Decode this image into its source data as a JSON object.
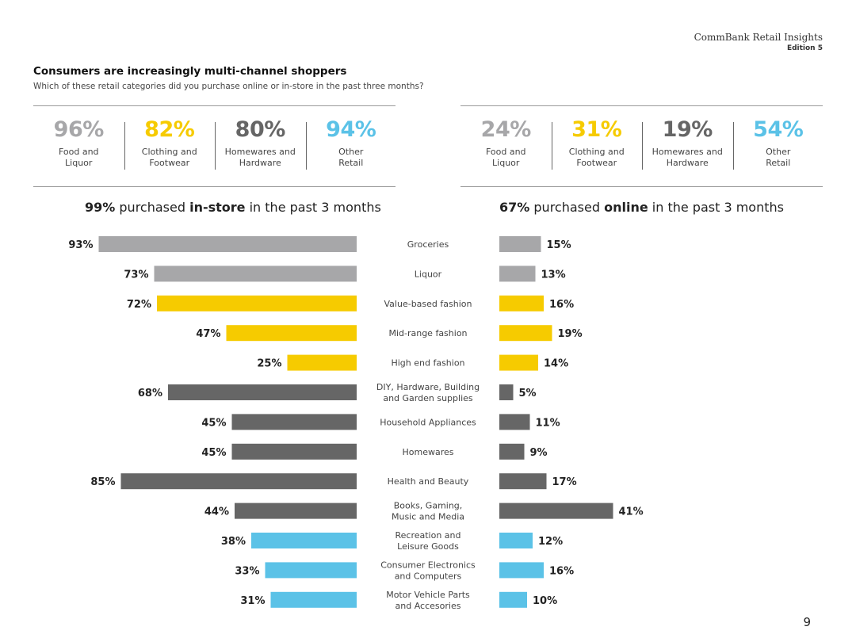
{
  "brand": {
    "name": "CommBank Retail Insights",
    "edition": "Edition 5"
  },
  "headline": "Consumers are increasingly multi-channel shoppers",
  "subhead": "Which of these retail categories did you purchase online or in-store in the past three months?",
  "colors": {
    "grey": "#a7a7a9",
    "yellow": "#f6cb00",
    "dark": "#666666",
    "blue": "#5bc2e7"
  },
  "instore_summary": [
    {
      "pct": "96%",
      "label": "Food and\nLiquor",
      "color": "#a7a7a9"
    },
    {
      "pct": "82%",
      "label": "Clothing and\nFootwear",
      "color": "#f6cb00"
    },
    {
      "pct": "80%",
      "label": "Homewares and\nHardware",
      "color": "#666666"
    },
    {
      "pct": "94%",
      "label": "Other\nRetail",
      "color": "#5bc2e7"
    }
  ],
  "online_summary": [
    {
      "pct": "24%",
      "label": "Food and\nLiquor",
      "color": "#a7a7a9"
    },
    {
      "pct": "31%",
      "label": "Clothing and\nFootwear",
      "color": "#f6cb00"
    },
    {
      "pct": "19%",
      "label": "Homewares and\nHardware",
      "color": "#666666"
    },
    {
      "pct": "54%",
      "label": "Other\nRetail",
      "color": "#5bc2e7"
    }
  ],
  "instore_title": {
    "pct": "99%",
    "pre": "purchased",
    "bold": "in-store",
    "post": "in the past 3 months"
  },
  "online_title": {
    "pct": "67%",
    "pre": "purchased",
    "bold": "online",
    "post": "in the past 3 months"
  },
  "chart_data": {
    "type": "bar",
    "orientation": "horizontal",
    "categories": [
      [
        "Groceries"
      ],
      [
        "Liquor"
      ],
      [
        "Value-based fashion"
      ],
      [
        "Mid-range fashion"
      ],
      [
        "High end fashion"
      ],
      [
        "DIY, Hardware, Building",
        "and Garden supplies"
      ],
      [
        "Household Appliances"
      ],
      [
        "Homewares"
      ],
      [
        "Health and Beauty"
      ],
      [
        "Books, Gaming,",
        "Music and Media"
      ],
      [
        "Recreation and",
        "Leisure Goods"
      ],
      [
        "Consumer Electronics",
        "and Computers"
      ],
      [
        "Motor Vehicle Parts",
        "and Accesories"
      ]
    ],
    "group_colors": [
      "grey",
      "grey",
      "yellow",
      "yellow",
      "yellow",
      "dark",
      "dark",
      "dark",
      "dark",
      "dark",
      "blue",
      "blue",
      "blue"
    ],
    "series": [
      {
        "values": [
          93,
          73,
          72,
          47,
          25,
          68,
          45,
          45,
          85,
          44,
          38,
          33,
          31
        ]
      },
      {
        "values": [
          15,
          13,
          16,
          19,
          14,
          5,
          11,
          9,
          17,
          41,
          12,
          16,
          10
        ]
      }
    ],
    "xlim": [
      0,
      100
    ],
    "value_suffix": "%"
  },
  "page_number": "9"
}
